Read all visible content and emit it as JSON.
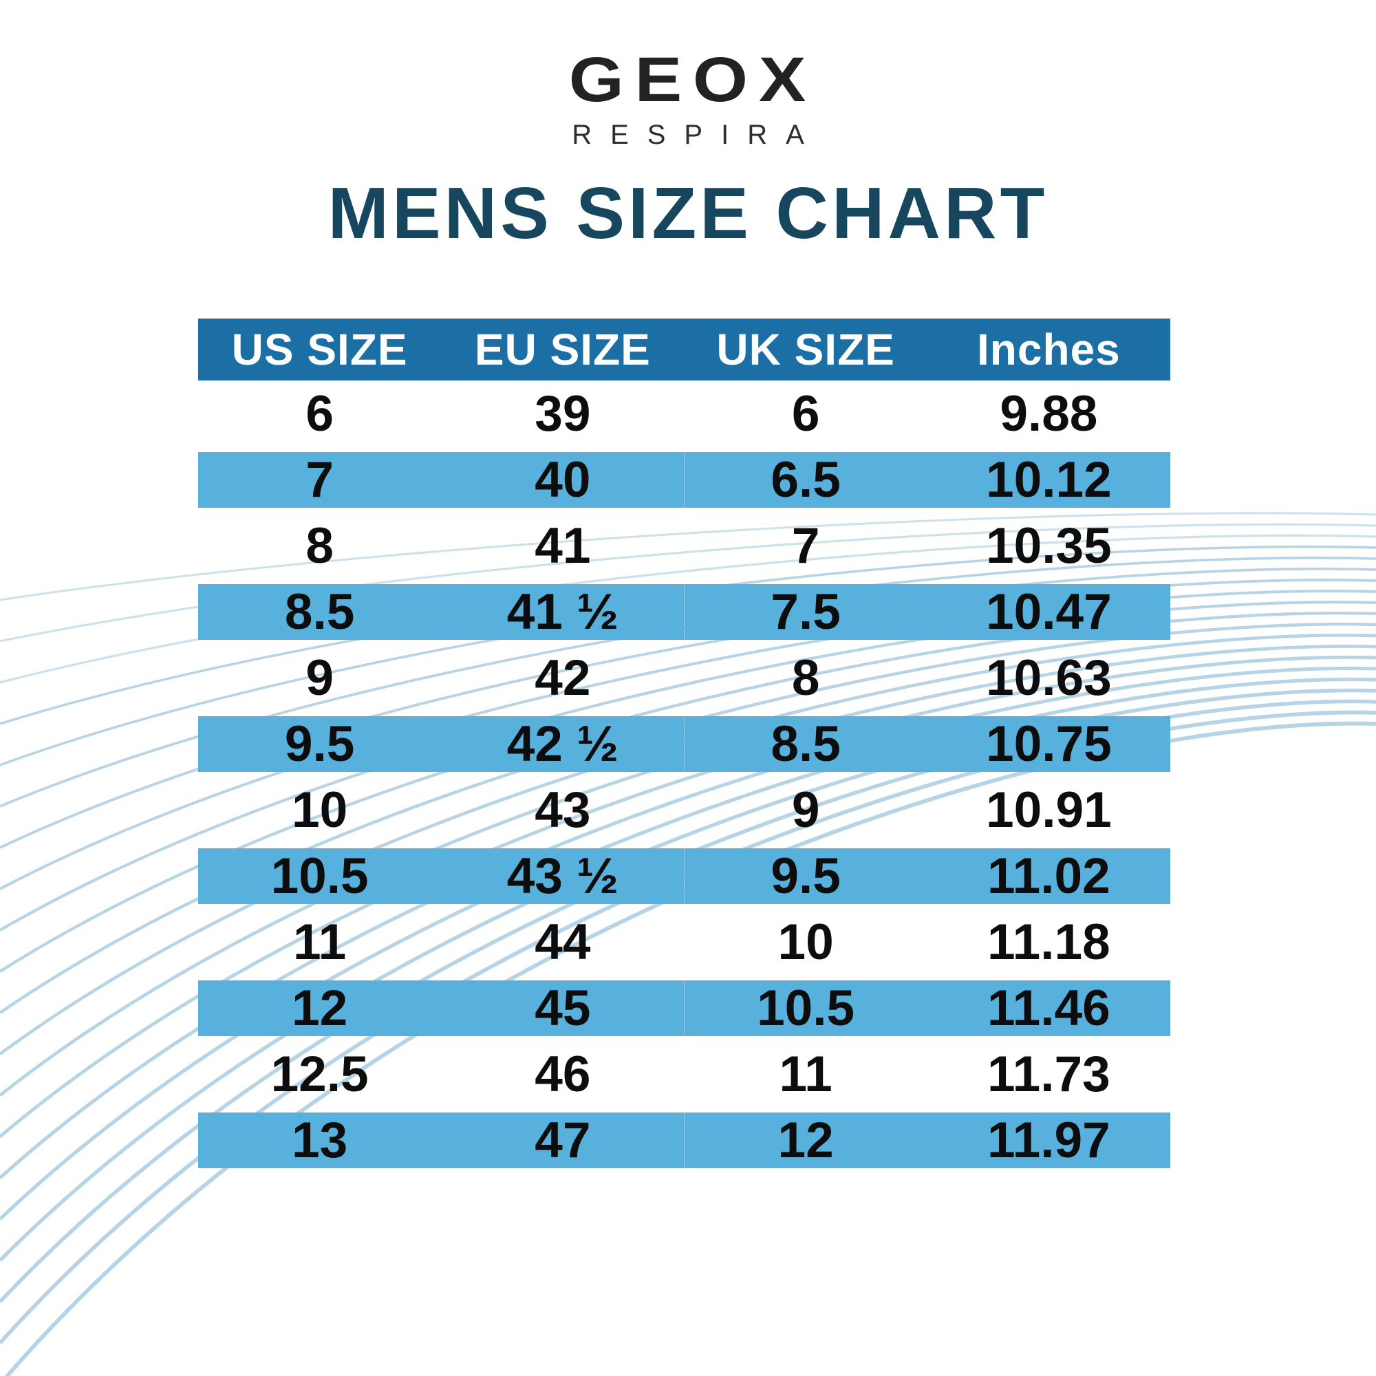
{
  "logo": {
    "brand": "GEOX",
    "tagline": "RESPIRA"
  },
  "title": "MENS SIZE CHART",
  "colors": {
    "header_bg": "#1b6fa4",
    "stripe_bg": "#58b1dc",
    "title_text": "#17465f",
    "header_text": "#ffffff",
    "cell_text": "#0d0d0d",
    "wave_line": "#a4c9de"
  },
  "chart_data": {
    "type": "table",
    "title": "MENS SIZE CHART",
    "columns": [
      "US SIZE",
      "EU SIZE",
      "UK SIZE",
      "Inches"
    ],
    "rows": [
      [
        "6",
        "39",
        "6",
        "9.88"
      ],
      [
        "7",
        "40",
        "6.5",
        "10.12"
      ],
      [
        "8",
        "41",
        "7",
        "10.35"
      ],
      [
        "8.5",
        "41 ½",
        "7.5",
        "10.47"
      ],
      [
        "9",
        "42",
        "8",
        "10.63"
      ],
      [
        "9.5",
        "42 ½",
        "8.5",
        "10.75"
      ],
      [
        "10",
        "43",
        "9",
        "10.91"
      ],
      [
        "10.5",
        "43 ½",
        "9.5",
        "11.02"
      ],
      [
        "11",
        "44",
        "10",
        "11.18"
      ],
      [
        "12",
        "45",
        "10.5",
        "11.46"
      ],
      [
        "12.5",
        "46",
        "11",
        "11.73"
      ],
      [
        "13",
        "47",
        "12",
        "11.97"
      ]
    ],
    "layout": {
      "zebra_striped_rows": "even rows light blue",
      "header": "dark blue band",
      "grid": false
    }
  }
}
